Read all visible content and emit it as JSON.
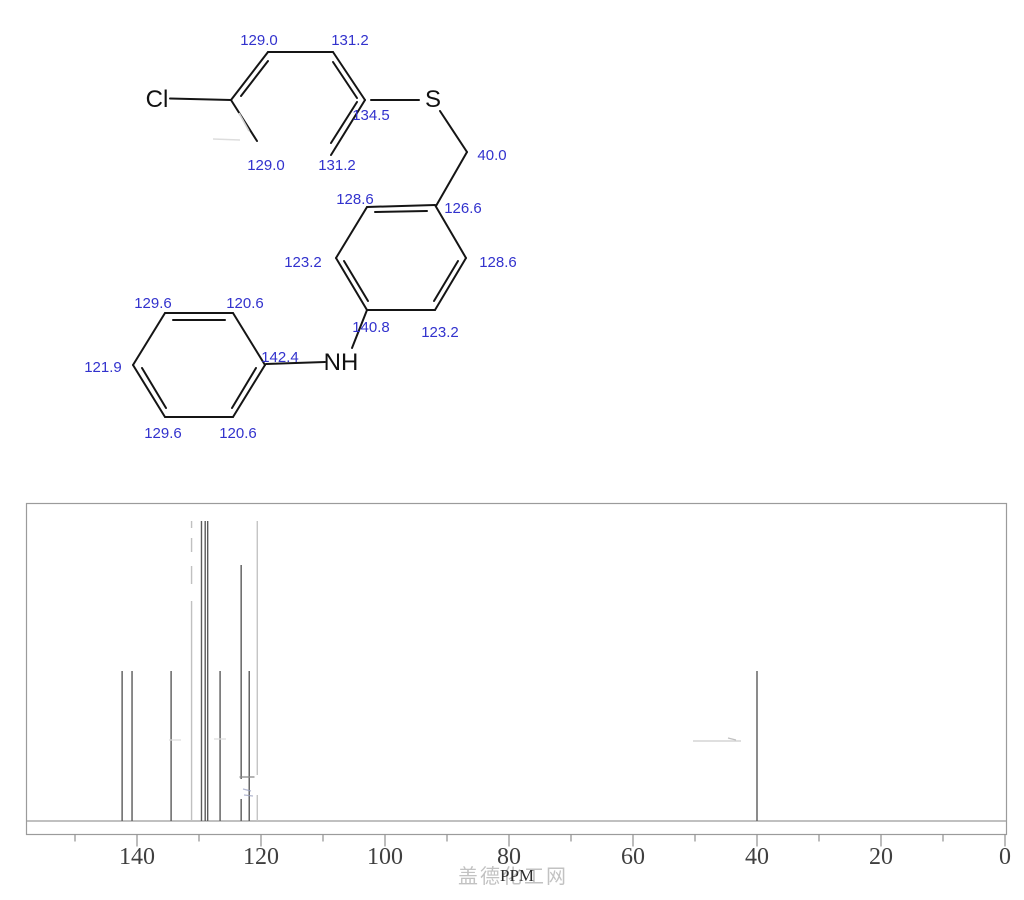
{
  "molecule": {
    "atoms": {
      "cl": "Cl",
      "s": "S",
      "nh": "NH"
    },
    "shift_labels": [
      "129.0",
      "131.2",
      "134.5",
      "129.0",
      "131.2",
      "40.0",
      "128.6",
      "126.6",
      "123.2",
      "128.6",
      "140.8",
      "123.2",
      "142.4",
      "129.6",
      "120.6",
      "121.9",
      "129.6",
      "120.6"
    ],
    "label_color": "#3232cd"
  },
  "chart_data": {
    "type": "bar",
    "title": "",
    "xlabel": "PPM",
    "ylabel": "",
    "grid": false,
    "legend": false,
    "x_axis": {
      "reversed": true,
      "range_ppm": [
        158,
        0
      ],
      "minor_tick_step": 10,
      "major_tick_step": 20,
      "tick_labels": [
        "140",
        "120",
        "100",
        "80",
        "60",
        "40",
        "20",
        "0"
      ]
    },
    "peaks": [
      {
        "ppm": 142.4,
        "intensity": 1
      },
      {
        "ppm": 140.8,
        "intensity": 1
      },
      {
        "ppm": 134.5,
        "intensity": 1
      },
      {
        "ppm": 131.2,
        "intensity": 2
      },
      {
        "ppm": 129.6,
        "intensity": 2
      },
      {
        "ppm": 129.0,
        "intensity": 2
      },
      {
        "ppm": 128.6,
        "intensity": 2
      },
      {
        "ppm": 126.6,
        "intensity": 1
      },
      {
        "ppm": 123.2,
        "intensity": 2
      },
      {
        "ppm": 121.9,
        "intensity": 1
      },
      {
        "ppm": 120.6,
        "intensity": 2
      },
      {
        "ppm": 40.0,
        "intensity": 1
      }
    ]
  },
  "watermark": {
    "text": "盖德化工网",
    "color": "#bcbcbc"
  }
}
